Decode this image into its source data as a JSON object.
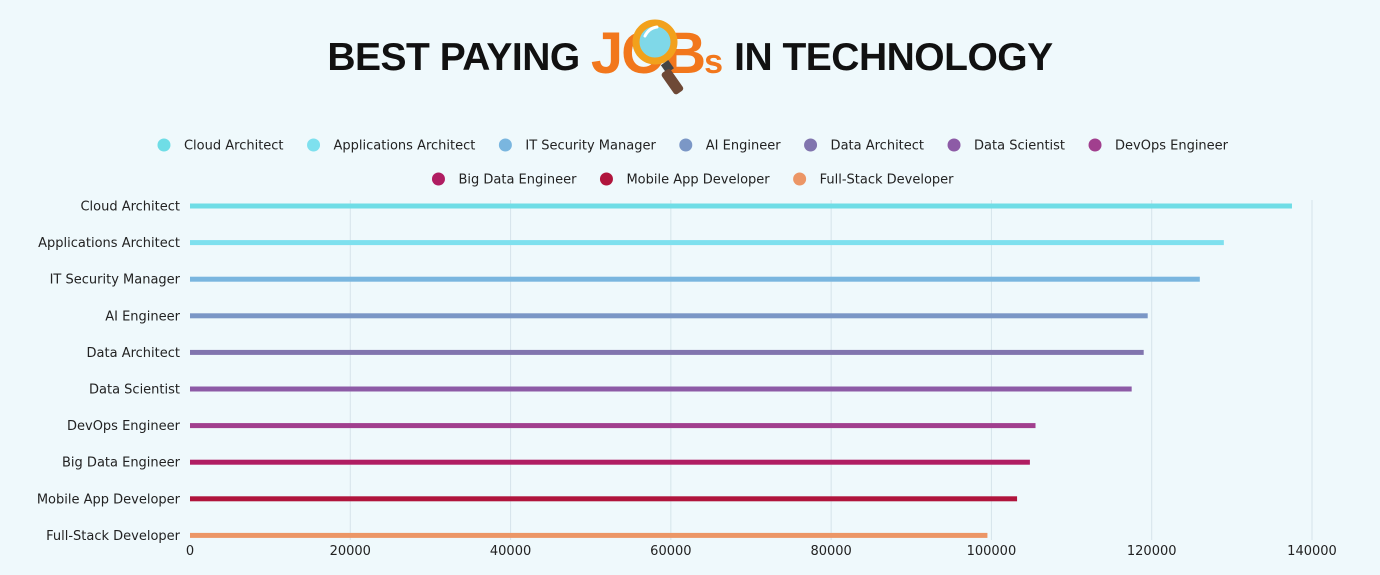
{
  "title": {
    "before": "BEST PAYING",
    "highlight_j": "J",
    "highlight_o": "O",
    "highlight_b": "B",
    "highlight_s": "s",
    "after": "IN TECHNOLOGY",
    "icon": "magnifier-icon"
  },
  "colors": {
    "background": "#eff9fc",
    "title_text": "#111111",
    "title_accent": "#f2771c",
    "grid": "#d6e4ea"
  },
  "chart_data": {
    "type": "bar",
    "orientation": "horizontal",
    "categories": [
      "Cloud Architect",
      "Applications Architect",
      "IT Security Manager",
      "AI Engineer",
      "Data Architect",
      "Data Scientist",
      "DevOps Engineer",
      "Big Data Engineer",
      "Mobile App Developer",
      "Full-Stack Developer"
    ],
    "values": [
      137500,
      129000,
      126000,
      119500,
      119000,
      117500,
      105500,
      104800,
      103200,
      99500
    ],
    "colors": [
      "#6fdde6",
      "#7ee0ee",
      "#7ab6df",
      "#7b97c6",
      "#8175ae",
      "#8d5ba6",
      "#a13f8e",
      "#b01d62",
      "#b0153c",
      "#ec9666"
    ],
    "xlim": [
      0,
      140000
    ],
    "xticks": [
      "0",
      "20000",
      "40000",
      "60000",
      "80000",
      "100000",
      "120000",
      "140000"
    ],
    "grid": "vertical",
    "legend": {
      "placement": "top",
      "items": [
        "Cloud Architect",
        "Applications Architect",
        "IT Security Manager",
        "AI Engineer",
        "Data Architect",
        "Data Scientist",
        "DevOps Engineer",
        "Big Data Engineer",
        "Mobile App Developer",
        "Full-Stack Developer"
      ]
    }
  }
}
